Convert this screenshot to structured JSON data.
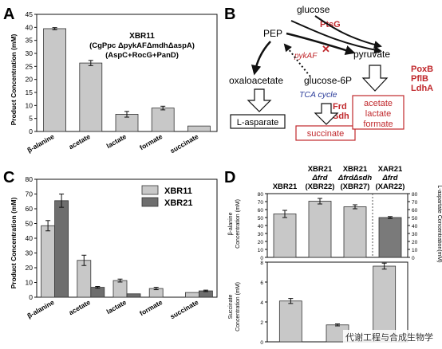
{
  "panel_letters": {
    "a": "A",
    "b": "B",
    "c": "C",
    "d": "D"
  },
  "chart_data": [
    {
      "panel": "A",
      "type": "bar",
      "title_lines": [
        "XBR11",
        "(CgPpc ΔpykAFΔmdhΔaspA)",
        "(AspC+RocG+PanD)"
      ],
      "ylabel": "Product Concentration (mM)",
      "ylim": [
        0,
        45
      ],
      "yticks": [
        0,
        5,
        10,
        15,
        20,
        25,
        30,
        35,
        40,
        45
      ],
      "categories": [
        "β-alanine",
        "acetate",
        "lactate",
        "formate",
        "succinate"
      ],
      "values": [
        39.5,
        26.3,
        6.6,
        9.0,
        2.1
      ],
      "errors": [
        0.4,
        1.0,
        1.1,
        0.7,
        0
      ],
      "color": "#c8c8c8"
    },
    {
      "panel": "C",
      "type": "bar",
      "ylabel": "Product Concentration (mM)",
      "ylim": [
        0,
        80
      ],
      "yticks": [
        0,
        10,
        20,
        30,
        40,
        50,
        60,
        70,
        80
      ],
      "categories": [
        "β-alanine",
        "acetate",
        "lactate",
        "formate",
        "succinate"
      ],
      "series": [
        {
          "name": "XBR11",
          "color": "#c8c8c8",
          "values": [
            48.5,
            25.0,
            11.3,
            5.9,
            3.2
          ],
          "errors": [
            3.5,
            3.5,
            1.0,
            0.8,
            0
          ]
        },
        {
          "name": "XBR21",
          "color": "#6e6e6e",
          "values": [
            65.5,
            6.7,
            2.3,
            0,
            4.3
          ],
          "errors": [
            4.5,
            0.6,
            0,
            0,
            0.5
          ]
        }
      ]
    },
    {
      "panel": "D-top",
      "type": "bar",
      "ylabel": "β-alanine Concentration (mM)",
      "ylabel_lines": [
        "β-alanine",
        "Concentration (mM)"
      ],
      "ylabel_right": "L-aspartate Concentration(mM)",
      "ylim": [
        0,
        80
      ],
      "yticks": [
        0,
        10,
        20,
        30,
        40,
        50,
        60,
        70,
        80
      ],
      "categories": [
        "XBR21",
        "XBR21 Δfrd (XBR22)",
        "XBR21 ΔfrdΔsdh (XBR27)",
        "XAR21 Δfrd (XAR22)"
      ],
      "values": [
        54.5,
        70.5,
        63.5,
        50.0
      ],
      "errors": [
        4.5,
        3.5,
        2.5,
        1.2
      ],
      "colors": [
        "#c8c8c8",
        "#c8c8c8",
        "#c8c8c8",
        "#7a7a7a"
      ]
    },
    {
      "panel": "D-bottom",
      "type": "bar",
      "ylabel": "Succinate Concentration (mM)",
      "ylabel_lines": [
        "Succinate",
        "Concentration (mM)"
      ],
      "ylim": [
        0,
        8
      ],
      "yticks": [
        0,
        2,
        4,
        6,
        8
      ],
      "categories": [
        "XBR21",
        "XBR22",
        "XBR27"
      ],
      "values": [
        4.1,
        1.7,
        7.6
      ],
      "errors": [
        0.25,
        0.1,
        0.3
      ],
      "color": "#c8c8c8"
    }
  ],
  "panel_d_headers": [
    {
      "lines": [
        "XBR21"
      ]
    },
    {
      "lines": [
        "XBR21",
        "Δfrd",
        "(XBR22)"
      ]
    },
    {
      "lines": [
        "XBR21",
        "ΔfrdΔsdh",
        "(XBR27)"
      ]
    },
    {
      "lines": [
        "XAR21",
        "Δfrd",
        "(XAR22)"
      ]
    }
  ],
  "pathway": {
    "glucose": "glucose",
    "ptsg": "PtsG",
    "pep": "PEP",
    "pykaf": "pykAF",
    "pyruvate": "pyruvate",
    "oxaloacetate": "oxaloacetate",
    "glucose6p": "glucose-6P",
    "tca": "TCA cycle",
    "frd": "Frd",
    "sdh": "Sdh",
    "poxb": "PoxB",
    "pflb": "PflB",
    "ldha": "LdhA",
    "l_asparate": "L-asparate",
    "succinate": "succinate",
    "acetate": "acetate",
    "lactate": "lactate",
    "formate": "formate"
  },
  "watermark": "代谢工程与合成生物学",
  "colors": {
    "red": "#c0282c",
    "blue": "#2e3f9c",
    "light_bar": "#c8c8c8",
    "dark_bar": "#6e6e6e"
  }
}
